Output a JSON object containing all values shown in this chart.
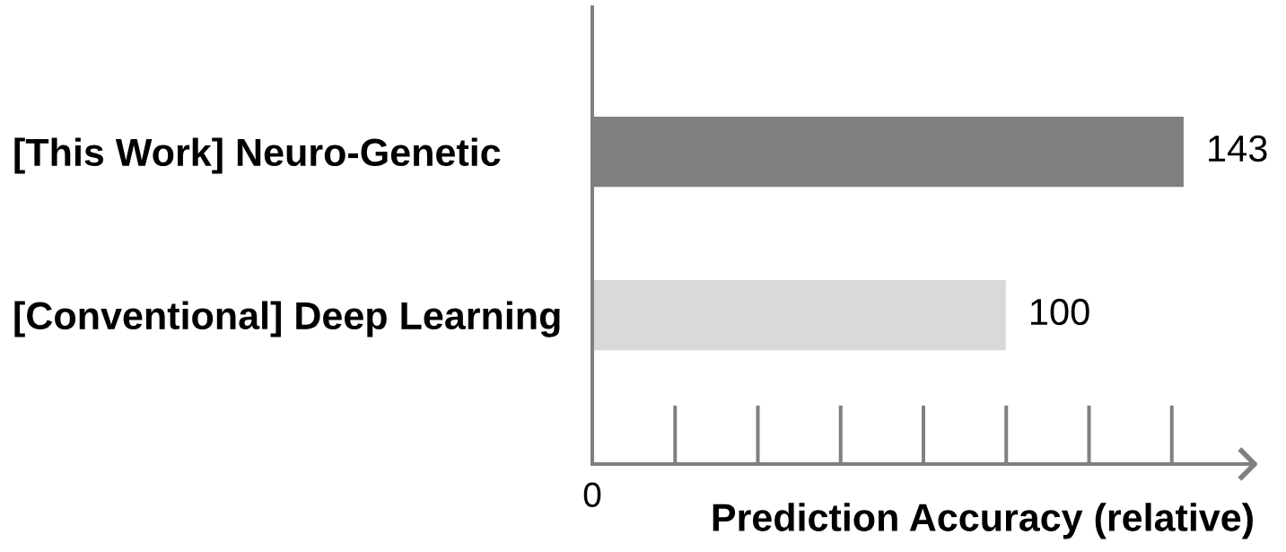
{
  "chart_data": {
    "type": "bar",
    "orientation": "horizontal",
    "categories": [
      "[This Work] Neuro-Genetic",
      "[Conventional] Deep Learning"
    ],
    "values": [
      143,
      100
    ],
    "colors": [
      "#7f7f7f",
      "#d9d9d9"
    ],
    "xlabel": "Prediction Accuracy (relative)",
    "data_labels": true,
    "annotations": [
      "0"
    ]
  }
}
